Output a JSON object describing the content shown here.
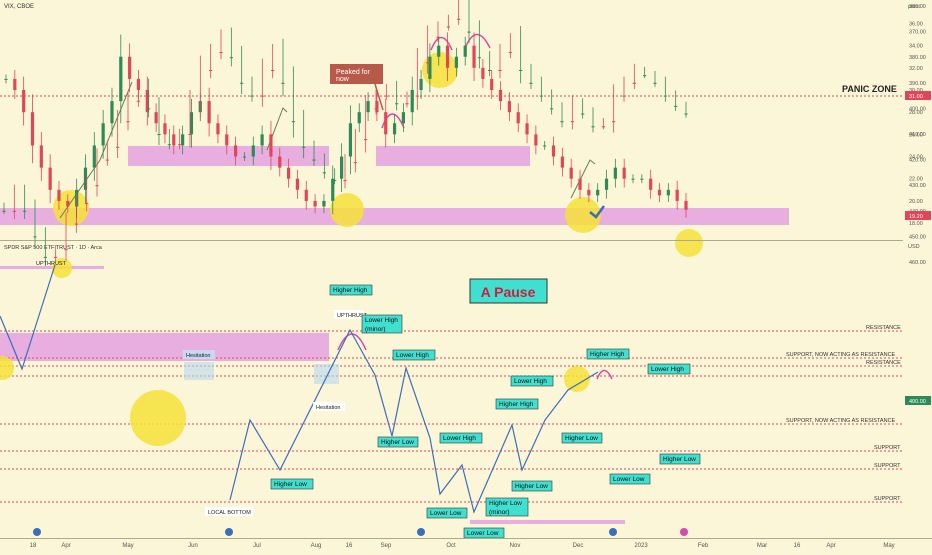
{
  "colors": {
    "bg": "#fcf6d8",
    "up": "#2e8b57",
    "down": "#e0455a",
    "zone": "#e6a6e0",
    "level": "#e0455a",
    "hl": "#f6e03a",
    "arrow": "#3a6fb8",
    "label_bg": "#40e0d0",
    "pause_bg": "#40e0d0",
    "price_tag": "#e0455a"
  },
  "vix_panel": {
    "ticker": "VIX, CBOE",
    "unit_label": "point",
    "panic_label": "PANIC ZONE",
    "peaked_label_1": "Peaked for",
    "peaked_label_2": "now",
    "price_tag": "19.20",
    "level_tag": "31.00",
    "y_ticks": [
      "36.00",
      "34.00",
      "32.00",
      "30.00",
      "28.00",
      "26.00",
      "24.00",
      "22.00",
      "20.00",
      "18.00"
    ]
  },
  "spy_panel": {
    "ticker": "SPDR S&P 500 ETF TRUST · 1D · Arca",
    "unit_label": "USD",
    "price_tag": "400.00",
    "y_ticks": [
      "460.00",
      "450.00",
      "440.00",
      "430.00",
      "420.00",
      "410.00",
      "400.00",
      "390.00",
      "380.00",
      "370.00",
      "360.00"
    ],
    "level_tags": [
      "429.34",
      "417.97",
      "413.95",
      "410.25",
      "390.73",
      "378.19",
      "371.01",
      "357.94"
    ],
    "level_labels": [
      "RESISTANCE",
      "SUPPORT, NOW ACTING AS RESISTANCE",
      "RESISTANCE",
      "SUPPORT, NOW ACTING AS RESISTANCE",
      "SUPPORT",
      "SUPPORT",
      "SUPPORT"
    ],
    "pause_label": "A Pause",
    "labels": {
      "upthrust_top": "UPTHRUST",
      "upthrust_mid": "UPTHRUST",
      "hesitation_1": "Hesitation",
      "hesitation_2": "Hesitation",
      "local_bottom": "LOCAL BOTTOM",
      "higher_high_1": "Higher High",
      "lower_high_minor_1": "Lower High",
      "lower_high_minor_2": "(minor)",
      "lower_high_1": "Lower High",
      "higher_low_1": "Higher Low",
      "lower_high_2": "Lower High",
      "lower_low_1": "Lower Low",
      "higher_high_2": "Higher High",
      "higher_low_minor_1": "Higher Low",
      "higher_low_minor_2": "(minor)",
      "lower_low_2": "Lower Low",
      "higher_low_2": "Higher Low",
      "lower_high_3": "Lower High",
      "higher_high_3": "Higher High",
      "higher_low_3": "Higher Low",
      "lower_high_4": "Lower High",
      "lower_low_3": "Lower Low",
      "higher_low_4": "Higher Low"
    }
  },
  "x_axis": {
    "ticks": [
      "18",
      "Apr",
      "May",
      "Jun",
      "Jul",
      "Aug",
      "16",
      "Sep",
      "Oct",
      "Nov",
      "Dec",
      "2023",
      "Feb",
      "Mar",
      "16",
      "Apr",
      "May"
    ]
  },
  "chart_data": [
    {
      "type": "candlestick",
      "name": "VIX",
      "y_unit": "point",
      "ylim": [
        17,
        37
      ],
      "x_range": [
        "Mar 2022",
        "Jan 2023"
      ],
      "approx_close": [
        31,
        30,
        28,
        25,
        23,
        21,
        20,
        19.5,
        21,
        23,
        25,
        27,
        29,
        33,
        31,
        30,
        28,
        27,
        26,
        25,
        26,
        28,
        29,
        27,
        26,
        25,
        24,
        24,
        25,
        26,
        24,
        23,
        22,
        21,
        20,
        19.5,
        20,
        22,
        24,
        27,
        28,
        29,
        28,
        26,
        27,
        28,
        30,
        31,
        33,
        34,
        32,
        33,
        34,
        32,
        31,
        30,
        29,
        28,
        27,
        26,
        25,
        25,
        24,
        23,
        22,
        21,
        20.5,
        21,
        22,
        23,
        22,
        22,
        22,
        21,
        20.5,
        21,
        20,
        19.2
      ],
      "levels": [
        31.0
      ],
      "zones": [
        [
          24,
          25.5
        ],
        [
          18.5,
          20
        ]
      ]
    },
    {
      "type": "candlestick",
      "name": "SPY",
      "y_unit": "USD",
      "ylim": [
        355,
        465
      ],
      "approx_close": [
        440,
        433,
        440,
        450,
        458,
        455,
        445,
        437,
        430,
        420,
        415,
        405,
        397,
        392,
        400,
        410,
        414,
        410,
        398,
        385,
        378,
        372,
        380,
        390,
        395,
        385,
        378,
        390,
        405,
        415,
        420,
        425,
        428,
        421,
        412,
        400,
        395,
        392,
        398,
        395,
        382,
        372,
        368,
        365,
        360,
        370,
        380,
        385,
        378,
        373,
        385,
        390,
        395,
        400,
        405,
        398,
        402,
        407,
        405,
        395,
        390,
        385,
        387,
        390,
        395,
        399,
        402
      ],
      "levels": [
        429.34,
        417.97,
        413.95,
        410.25,
        390.73,
        378.19,
        371.01,
        357.94
      ],
      "zones": [
        [
          418,
          430
        ]
      ]
    }
  ]
}
